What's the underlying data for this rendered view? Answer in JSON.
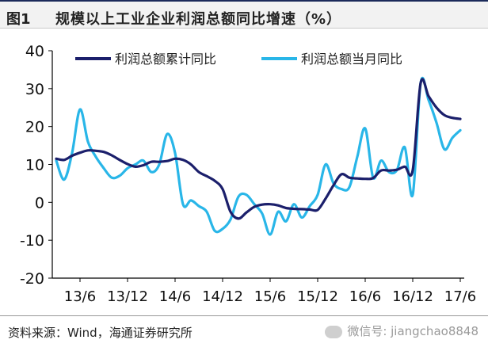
{
  "header": {
    "figure_label": "图1",
    "title": "规模以上工业企业利润总额同比增速（%）"
  },
  "footer": {
    "source": "资料来源：Wind，海通证券研究所",
    "watermark": "微信号: jiangchao8848"
  },
  "colors": {
    "cumulative": "#1b1f6b",
    "monthly": "#29b6e8",
    "axis": "#000000"
  },
  "chart_data": {
    "type": "line",
    "title": "",
    "xlabel": "",
    "ylabel": "",
    "ylim": [
      -20,
      40
    ],
    "yticks": [
      -20,
      -10,
      0,
      10,
      20,
      30,
      40
    ],
    "x_tick_labels": [
      "13/6",
      "13/12",
      "14/6",
      "14/12",
      "15/6",
      "15/12",
      "16/6",
      "16/12",
      "17/6"
    ],
    "legend_position": "top",
    "x": [
      "13/3",
      "13/4",
      "13/5",
      "13/6",
      "13/7",
      "13/8",
      "13/9",
      "13/10",
      "13/11",
      "13/12",
      "14/1",
      "14/2",
      "14/3",
      "14/4",
      "14/5",
      "14/6",
      "14/7",
      "14/8",
      "14/9",
      "14/10",
      "14/11",
      "14/12",
      "15/1",
      "15/2",
      "15/3",
      "15/4",
      "15/5",
      "15/6",
      "15/7",
      "15/8",
      "15/9",
      "15/10",
      "15/11",
      "15/12",
      "16/1",
      "16/2",
      "16/3",
      "16/4",
      "16/5",
      "16/6",
      "16/7",
      "16/8",
      "16/9",
      "16/10",
      "16/11",
      "16/12",
      "17/1",
      "17/2",
      "17/3",
      "17/4",
      "17/5",
      "17/6"
    ],
    "series": [
      {
        "name": "利润总额累计同比",
        "values": [
          11.5,
          11.2,
          12.3,
          13.1,
          13.7,
          13.6,
          13.3,
          12.4,
          11.2,
          10.1,
          9.4,
          9.8,
          10.7,
          10.7,
          10.9,
          11.5,
          11.2,
          10.0,
          8.0,
          6.9,
          5.7,
          3.5,
          -2.5,
          -4.3,
          -2.7,
          -1.2,
          -0.6,
          -0.5,
          -0.8,
          -1.5,
          -1.7,
          -1.8,
          -1.9,
          -2.0,
          1.0,
          4.5,
          7.4,
          6.5,
          6.3,
          6.2,
          6.4,
          8.4,
          8.4,
          8.6,
          9.4,
          8.5,
          31.5,
          28.0,
          25.0,
          23.0,
          22.3,
          22.0
        ]
      },
      {
        "name": "利润总额当月同比",
        "values": [
          11.0,
          6.0,
          13.0,
          24.5,
          16.0,
          12.0,
          9.0,
          6.5,
          7.0,
          9.0,
          10.0,
          11.0,
          8.0,
          10.0,
          18.0,
          13.0,
          -0.5,
          0.5,
          -1.0,
          -2.5,
          -7.5,
          -7.0,
          -4.5,
          1.5,
          2.0,
          -0.5,
          -3.0,
          -8.5,
          -2.5,
          -5.0,
          -0.5,
          -4.0,
          -1.0,
          2.0,
          10.0,
          5.0,
          3.5,
          4.0,
          12.0,
          19.5,
          6.5,
          11.0,
          8.0,
          8.5,
          14.5,
          2.0,
          31.5,
          27.0,
          21.0,
          14.0,
          17.0,
          19.0
        ]
      }
    ]
  }
}
